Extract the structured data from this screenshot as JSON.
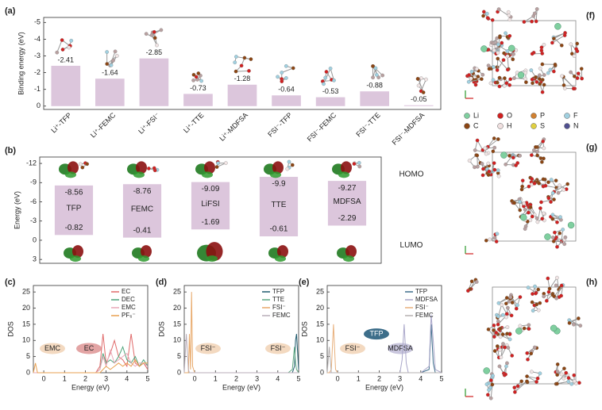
{
  "chart_data": [
    {
      "type": "bar",
      "label": "(a)",
      "y_label": "Binding energy (eV)",
      "color": "#dcc6dc",
      "categories": [
        "Li⁺-TFP",
        "Li⁺-FEMC",
        "Li⁺-FSI⁻",
        "Li⁺-TTE",
        "Li⁺-MDFSA",
        "FSI⁻-TFP",
        "FSI⁻-FEMC",
        "FSI⁻-TTE",
        "FSI⁻-MDFSA"
      ],
      "values": [
        -2.41,
        -1.64,
        -2.85,
        -0.73,
        -1.28,
        -0.64,
        -0.53,
        -0.88,
        -0.05
      ],
      "ylim": [
        0.2,
        -5.3
      ],
      "yticks": [
        -5,
        -4,
        -3,
        -2,
        -1,
        0
      ]
    },
    {
      "type": "range",
      "label": "(b)",
      "y_label": "Energy (eV)",
      "color": "#dcc6dc",
      "categories": [
        "TFP",
        "FEMC",
        "LiFSI",
        "TTE",
        "MDFSA"
      ],
      "series": [
        {
          "name": "HOMO",
          "values": [
            -8.56,
            -8.76,
            -9.09,
            -9.9,
            -9.27
          ]
        },
        {
          "name": "LUMO",
          "values": [
            -0.82,
            -0.41,
            -1.69,
            -0.61,
            -2.29
          ]
        }
      ],
      "ylim": [
        3.6,
        -13
      ],
      "yticks": [
        -12,
        -9,
        -6,
        -3,
        0,
        3
      ]
    },
    {
      "type": "line",
      "label": "(c)",
      "y_label": "DOS",
      "x_label": "Energy (eV)",
      "x": [
        -0.5,
        -0.4,
        -0.3,
        -0.2,
        0,
        1,
        2,
        2.5,
        2.7,
        2.85,
        3,
        3.2,
        3.4,
        3.6,
        3.8,
        4,
        4.2,
        4.4,
        4.6,
        4.8,
        5
      ],
      "series": [
        {
          "name": "EC",
          "color": "#e06a6a",
          "values": [
            0,
            0,
            0,
            0,
            0,
            0,
            0,
            0,
            2,
            12,
            3,
            6,
            10,
            5,
            4,
            2,
            12,
            3,
            2,
            3,
            1
          ]
        },
        {
          "name": "DEC",
          "color": "#4fa37a",
          "values": [
            0,
            0,
            0,
            0,
            0,
            0,
            0,
            0,
            1,
            6,
            3,
            4,
            3,
            5,
            8,
            4,
            3,
            5,
            2,
            4,
            2
          ]
        },
        {
          "name": "EMC",
          "color": "#e8a8b8",
          "values": [
            0,
            0,
            0,
            0,
            0,
            0,
            0,
            0,
            1,
            5,
            2,
            7,
            3,
            4,
            5,
            6,
            3,
            2,
            3,
            3,
            2
          ]
        },
        {
          "name": "PF₆⁻",
          "color": "#e8a050",
          "values": [
            0,
            3,
            0,
            0,
            0,
            0,
            0,
            0,
            0,
            1,
            2,
            1,
            2,
            3,
            2,
            3,
            2,
            4,
            2,
            3,
            3
          ]
        }
      ],
      "annotations": [
        "EMC",
        "EC"
      ],
      "xlim": [
        -0.5,
        5
      ],
      "xticks": [
        0,
        1,
        2,
        3,
        4,
        5
      ],
      "ylim": [
        0,
        27
      ],
      "yticks": [
        0,
        5,
        10,
        15,
        20,
        25
      ]
    },
    {
      "type": "line",
      "label": "(d)",
      "y_label": "DOS",
      "x_label": "Energy (eV)",
      "x": [
        -0.5,
        -0.4,
        -0.3,
        -0.25,
        -0.2,
        -0.15,
        -0.1,
        0,
        1,
        2,
        3,
        4,
        4.5,
        4.7,
        4.8,
        4.85,
        4.9,
        5
      ],
      "series": [
        {
          "name": "TFP",
          "color": "#1f5b6e",
          "values": [
            0,
            0,
            0,
            0,
            0,
            0,
            0,
            0,
            0,
            0,
            0,
            0,
            0,
            0,
            2,
            10,
            12,
            1
          ]
        },
        {
          "name": "TTE",
          "color": "#5fa882",
          "values": [
            0,
            0,
            0,
            0,
            0,
            0,
            0,
            0,
            0,
            0,
            0,
            0,
            0,
            1,
            8,
            3,
            1,
            0
          ]
        },
        {
          "name": "FSI⁻",
          "color": "#e8a96a",
          "values": [
            0,
            0,
            0,
            12,
            1,
            25,
            2,
            0,
            0,
            0,
            0,
            0,
            0,
            0,
            0,
            0,
            0,
            0
          ]
        },
        {
          "name": "FEMC",
          "color": "#b9adb9",
          "values": [
            0,
            12,
            1,
            0,
            0,
            0,
            0,
            0,
            0,
            0,
            0,
            0,
            0,
            0,
            0,
            0,
            0,
            0
          ]
        }
      ],
      "annotations": [
        "FSI⁻",
        "FSI⁻"
      ],
      "xlim": [
        -0.5,
        5
      ],
      "xticks": [
        0,
        1,
        2,
        3,
        4,
        5
      ],
      "ylim": [
        0,
        27
      ],
      "yticks": [
        0,
        5,
        10,
        15,
        20,
        25
      ]
    },
    {
      "type": "line",
      "label": "(e)",
      "y_label": "DOS",
      "x_label": "Energy (eV)",
      "x": [
        -0.5,
        -0.4,
        -0.3,
        -0.2,
        -0.1,
        0,
        1,
        2,
        3,
        3.1,
        3.2,
        3.3,
        3.4,
        4,
        4.4,
        4.5,
        4.6,
        4.7,
        5
      ],
      "series": [
        {
          "name": "TFP",
          "color": "#3d6e8a",
          "values": [
            0,
            0,
            0,
            0,
            0,
            0,
            0,
            0,
            0,
            0,
            0,
            0,
            0,
            0,
            1,
            15,
            3,
            0,
            0
          ]
        },
        {
          "name": "MDFSA",
          "color": "#a9a6c9",
          "values": [
            0,
            0,
            0,
            0,
            0,
            0,
            0,
            0,
            0,
            4,
            15,
            3,
            0,
            0,
            2,
            18,
            10,
            1,
            0
          ]
        },
        {
          "name": "FSI⁻",
          "color": "#e8b07c",
          "values": [
            0,
            0,
            1,
            15,
            1,
            0,
            0,
            0,
            0,
            0,
            0,
            0,
            0,
            0,
            0,
            0,
            0,
            0,
            0
          ]
        },
        {
          "name": "FEMC",
          "color": "#b5b0b0",
          "values": [
            0,
            8,
            0,
            0,
            0,
            0,
            0,
            0,
            0,
            0,
            0,
            0,
            0,
            0,
            0,
            0,
            0,
            0,
            0
          ]
        }
      ],
      "annotations": [
        "FSI⁻",
        "TFP",
        "MDFSA"
      ],
      "xlim": [
        -0.5,
        5
      ],
      "xticks": [
        0,
        1,
        2,
        3,
        4,
        5
      ],
      "ylim": [
        0,
        27
      ],
      "yticks": [
        0,
        5,
        10,
        15,
        20,
        25
      ]
    }
  ],
  "snapshots": [
    {
      "label": "(f)"
    },
    {
      "label": "(g)"
    },
    {
      "label": "(h)"
    }
  ],
  "atom_legend": [
    "Li",
    "O",
    "P",
    "F",
    "C",
    "H",
    "S",
    "N"
  ]
}
